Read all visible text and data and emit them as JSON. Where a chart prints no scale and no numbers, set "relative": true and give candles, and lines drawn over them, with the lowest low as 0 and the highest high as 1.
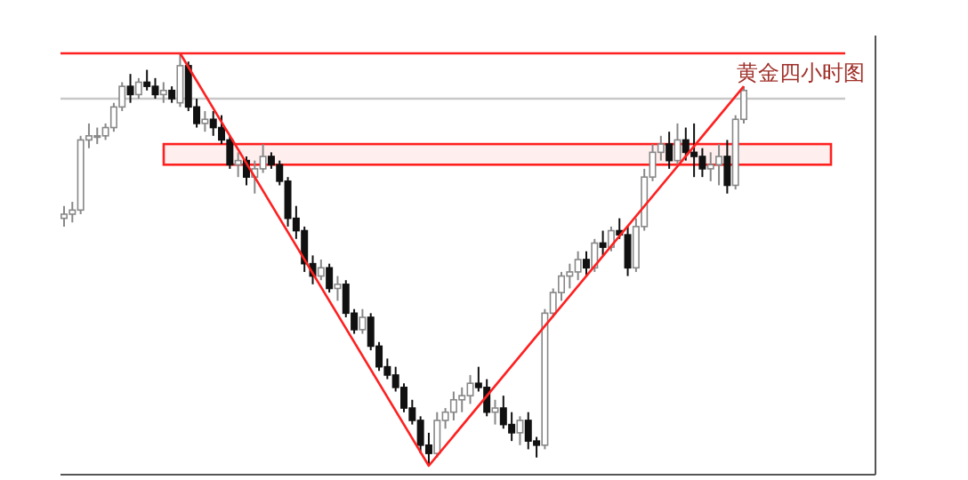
{
  "chart_data": {
    "type": "candlestick",
    "relative": true,
    "categories": [
      null,
      null,
      null,
      null,
      null,
      null,
      null,
      null,
      null,
      null,
      null,
      null,
      null,
      null,
      null,
      null,
      null,
      null,
      null,
      null,
      null,
      null,
      null,
      null,
      null,
      null,
      null,
      null,
      null,
      null,
      null,
      null,
      null,
      null,
      null,
      null,
      null,
      null,
      null,
      null,
      null,
      null,
      null,
      null,
      null,
      null,
      null,
      null,
      null,
      null,
      null,
      null,
      null,
      null,
      null,
      null,
      null,
      null,
      null,
      null,
      null,
      null,
      null,
      null,
      null,
      null,
      null,
      null,
      null,
      null,
      null,
      null,
      null,
      null,
      null,
      null,
      null,
      null,
      null,
      null,
      null,
      null,
      null
    ],
    "ohlc": [
      [
        0.6,
        0.63,
        0.58,
        0.61
      ],
      [
        0.61,
        0.64,
        0.59,
        0.62
      ],
      [
        0.62,
        0.8,
        0.61,
        0.79
      ],
      [
        0.79,
        0.83,
        0.77,
        0.8
      ],
      [
        0.8,
        0.82,
        0.78,
        0.8
      ],
      [
        0.8,
        0.83,
        0.79,
        0.82
      ],
      [
        0.82,
        0.88,
        0.81,
        0.87
      ],
      [
        0.87,
        0.93,
        0.86,
        0.92
      ],
      [
        0.92,
        0.95,
        0.88,
        0.9
      ],
      [
        0.9,
        0.94,
        0.89,
        0.93
      ],
      [
        0.93,
        0.96,
        0.91,
        0.92
      ],
      [
        0.92,
        0.94,
        0.89,
        0.9
      ],
      [
        0.9,
        0.93,
        0.88,
        0.91
      ],
      [
        0.91,
        0.92,
        0.88,
        0.89
      ],
      [
        0.88,
        1.0,
        0.87,
        0.97
      ],
      [
        0.97,
        0.98,
        0.86,
        0.87
      ],
      [
        0.87,
        0.89,
        0.82,
        0.83
      ],
      [
        0.83,
        0.86,
        0.81,
        0.84
      ],
      [
        0.84,
        0.86,
        0.8,
        0.82
      ],
      [
        0.82,
        0.85,
        0.78,
        0.79
      ],
      [
        0.79,
        0.8,
        0.72,
        0.73
      ],
      [
        0.73,
        0.76,
        0.7,
        0.74
      ],
      [
        0.74,
        0.75,
        0.68,
        0.7
      ],
      [
        0.7,
        0.74,
        0.66,
        0.72
      ],
      [
        0.72,
        0.78,
        0.71,
        0.75
      ],
      [
        0.75,
        0.76,
        0.72,
        0.73
      ],
      [
        0.73,
        0.74,
        0.68,
        0.69
      ],
      [
        0.69,
        0.7,
        0.58,
        0.6
      ],
      [
        0.6,
        0.63,
        0.55,
        0.57
      ],
      [
        0.57,
        0.58,
        0.47,
        0.49
      ],
      [
        0.49,
        0.51,
        0.44,
        0.46
      ],
      [
        0.46,
        0.5,
        0.45,
        0.48
      ],
      [
        0.48,
        0.49,
        0.42,
        0.43
      ],
      [
        0.43,
        0.46,
        0.4,
        0.44
      ],
      [
        0.44,
        0.45,
        0.36,
        0.37
      ],
      [
        0.37,
        0.38,
        0.32,
        0.33
      ],
      [
        0.33,
        0.38,
        0.32,
        0.36
      ],
      [
        0.36,
        0.37,
        0.28,
        0.29
      ],
      [
        0.29,
        0.3,
        0.23,
        0.24
      ],
      [
        0.24,
        0.26,
        0.21,
        0.22
      ],
      [
        0.22,
        0.24,
        0.18,
        0.19
      ],
      [
        0.19,
        0.2,
        0.13,
        0.14
      ],
      [
        0.14,
        0.16,
        0.1,
        0.11
      ],
      [
        0.11,
        0.12,
        0.03,
        0.05
      ],
      [
        0.05,
        0.08,
        0.0,
        0.03
      ],
      [
        0.03,
        0.13,
        0.02,
        0.11
      ],
      [
        0.11,
        0.14,
        0.09,
        0.13
      ],
      [
        0.13,
        0.18,
        0.11,
        0.16
      ],
      [
        0.16,
        0.19,
        0.13,
        0.17
      ],
      [
        0.17,
        0.22,
        0.15,
        0.2
      ],
      [
        0.2,
        0.24,
        0.18,
        0.19
      ],
      [
        0.19,
        0.21,
        0.12,
        0.13
      ],
      [
        0.13,
        0.16,
        0.1,
        0.14
      ],
      [
        0.14,
        0.17,
        0.09,
        0.1
      ],
      [
        0.1,
        0.13,
        0.06,
        0.08
      ],
      [
        0.08,
        0.12,
        0.05,
        0.11
      ],
      [
        0.11,
        0.13,
        0.04,
        0.06
      ],
      [
        0.06,
        0.07,
        0.02,
        0.05
      ],
      [
        0.05,
        0.38,
        0.04,
        0.37
      ],
      [
        0.37,
        0.43,
        0.36,
        0.42
      ],
      [
        0.42,
        0.47,
        0.4,
        0.46
      ],
      [
        0.46,
        0.49,
        0.43,
        0.47
      ],
      [
        0.47,
        0.52,
        0.45,
        0.5
      ],
      [
        0.5,
        0.52,
        0.46,
        0.48
      ],
      [
        0.48,
        0.55,
        0.47,
        0.54
      ],
      [
        0.54,
        0.57,
        0.51,
        0.53
      ],
      [
        0.53,
        0.58,
        0.52,
        0.57
      ],
      [
        0.57,
        0.6,
        0.55,
        0.56
      ],
      [
        0.56,
        0.58,
        0.46,
        0.48
      ],
      [
        0.48,
        0.6,
        0.47,
        0.58
      ],
      [
        0.58,
        0.72,
        0.57,
        0.7
      ],
      [
        0.7,
        0.78,
        0.69,
        0.76
      ],
      [
        0.76,
        0.8,
        0.74,
        0.78
      ],
      [
        0.78,
        0.81,
        0.72,
        0.74
      ],
      [
        0.74,
        0.83,
        0.73,
        0.79
      ],
      [
        0.79,
        0.82,
        0.74,
        0.76
      ],
      [
        0.76,
        0.83,
        0.7,
        0.75
      ],
      [
        0.75,
        0.77,
        0.7,
        0.72
      ],
      [
        0.72,
        0.76,
        0.69,
        0.73
      ],
      [
        0.73,
        0.78,
        0.68,
        0.75
      ],
      [
        0.75,
        0.79,
        0.66,
        0.68
      ],
      [
        0.68,
        0.85,
        0.67,
        0.84
      ],
      [
        0.84,
        0.92,
        0.83,
        0.91
      ]
    ],
    "series": [
      {
        "type": "line",
        "color": "#ff2020",
        "values": [
          null,
          null,
          null,
          null,
          null,
          null,
          null,
          null,
          null,
          null,
          null,
          null,
          null,
          null,
          1.0,
          null,
          null,
          null,
          null,
          null,
          null,
          null,
          null,
          null,
          null,
          null,
          null,
          null,
          null,
          null,
          null,
          null,
          null,
          null,
          null,
          null,
          null,
          null,
          null,
          null,
          null,
          null,
          null,
          null,
          0.0,
          null,
          null,
          null,
          null,
          null,
          null,
          null,
          null,
          null,
          null,
          null,
          null,
          null,
          null,
          null,
          null,
          null,
          null,
          null,
          null,
          null,
          null,
          null,
          null,
          null,
          null,
          null,
          null,
          null,
          null,
          null,
          null,
          null,
          null,
          null,
          null,
          null,
          0.92
        ]
      }
    ],
    "ref_lines": [
      {
        "axis": "y",
        "value": 1.0,
        "color": "#ff2020"
      },
      {
        "axis": "y",
        "value": 0.89,
        "color": "#c8c8c8"
      }
    ],
    "bands": [
      {
        "axis": "y",
        "from": 0.73,
        "to": 0.78,
        "color": "#ff2020"
      }
    ],
    "annotations": [
      "黄金四小时图"
    ]
  }
}
